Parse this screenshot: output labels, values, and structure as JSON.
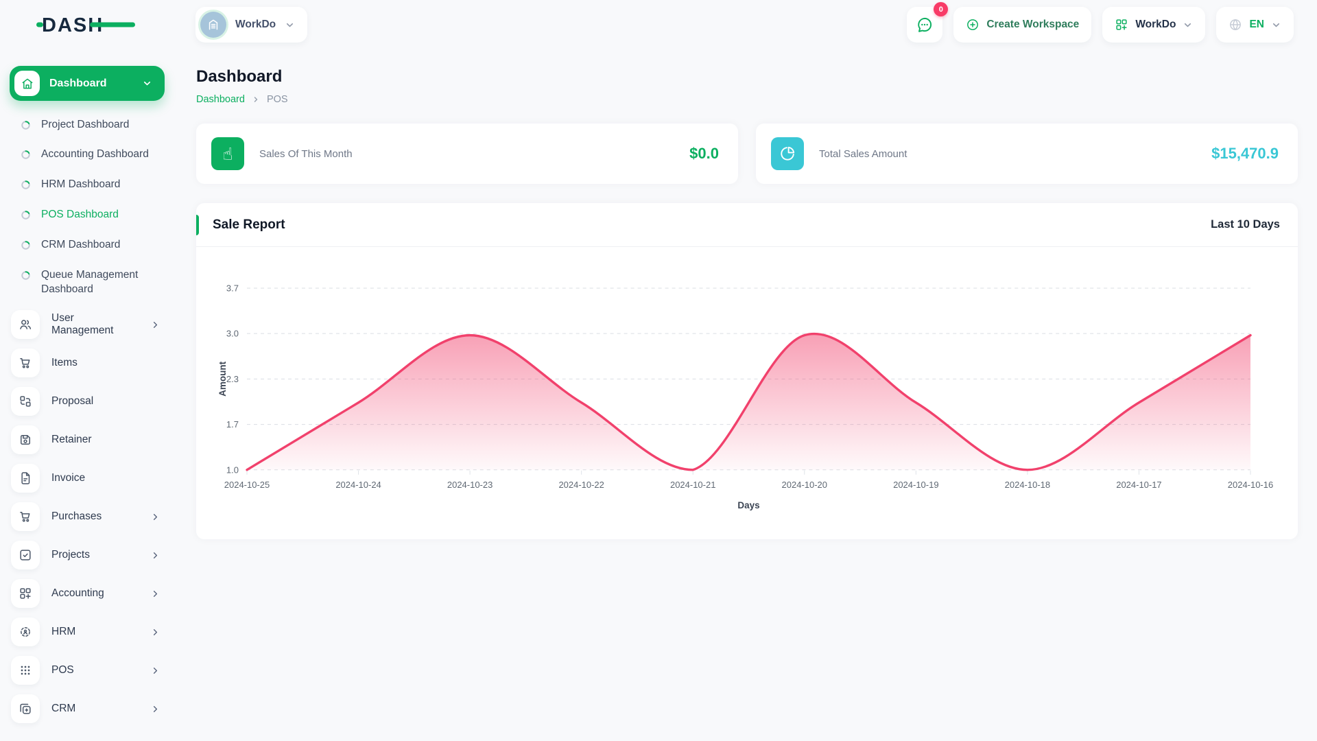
{
  "brand": {
    "logo_text": "DASH",
    "green": "#0caf60",
    "navy": "#17293e"
  },
  "header": {
    "workspace_switcher": {
      "label": "WorkDo",
      "avatar_icon": "building-icon"
    },
    "chat": {
      "icon": "chat-icon",
      "badge_count": "0"
    },
    "create_workspace_label": "Create Workspace",
    "workdo_menu_label": "WorkDo",
    "language": {
      "code": "EN",
      "icon": "globe-icon"
    }
  },
  "sidebar": {
    "active_item": {
      "label": "Dashboard",
      "icon": "home-icon"
    },
    "dashboard_children": [
      {
        "label": "Project Dashboard",
        "active": false
      },
      {
        "label": "Accounting Dashboard",
        "active": false
      },
      {
        "label": "HRM Dashboard",
        "active": false
      },
      {
        "label": "POS Dashboard",
        "active": true
      },
      {
        "label": "CRM Dashboard",
        "active": false
      },
      {
        "label": "Queue Management Dashboard",
        "active": false
      }
    ],
    "items": [
      {
        "label": "User Management",
        "icon": "users-icon",
        "has_children": true
      },
      {
        "label": "Items",
        "icon": "cart-icon",
        "has_children": false
      },
      {
        "label": "Proposal",
        "icon": "proposal-icon",
        "has_children": false
      },
      {
        "label": "Retainer",
        "icon": "retainer-icon",
        "has_children": false
      },
      {
        "label": "Invoice",
        "icon": "invoice-icon",
        "has_children": false
      },
      {
        "label": "Purchases",
        "icon": "cart-icon",
        "has_children": true
      },
      {
        "label": "Projects",
        "icon": "projects-icon",
        "has_children": true
      },
      {
        "label": "Accounting",
        "icon": "accounting-icon",
        "has_children": true
      },
      {
        "label": "HRM",
        "icon": "hrm-icon",
        "has_children": true
      },
      {
        "label": "POS",
        "icon": "pos-icon",
        "has_children": true
      },
      {
        "label": "CRM",
        "icon": "crm-icon",
        "has_children": true
      }
    ]
  },
  "page": {
    "title": "Dashboard",
    "breadcrumb": [
      {
        "label": "Dashboard",
        "link": true
      },
      {
        "label": "POS",
        "link": false
      }
    ]
  },
  "stats": [
    {
      "label": "Sales Of This Month",
      "value": "$0.0",
      "accent": "#0caf60",
      "icon": "tap-icon"
    },
    {
      "label": "Total Sales Amount",
      "value": "$15,470.9",
      "accent": "#3ac7d5",
      "icon": "pie-chart-icon"
    }
  ],
  "report": {
    "title": "Sale Report",
    "range_label": "Last 10 Days"
  },
  "chart_data": {
    "type": "area",
    "title": "Sale Report",
    "x": [
      "2024-10-25",
      "2024-10-24",
      "2024-10-23",
      "2024-10-22",
      "2024-10-21",
      "2024-10-20",
      "2024-10-19",
      "2024-10-18",
      "2024-10-17",
      "2024-10-16"
    ],
    "series": [
      {
        "name": "Amount",
        "values": [
          1,
          2,
          3,
          2,
          1,
          3,
          2,
          1,
          2,
          3
        ]
      }
    ],
    "xlabel": "Days",
    "ylabel": "Amount",
    "ylim": [
      1.0,
      3.7
    ],
    "ytick_labels": [
      "1.0",
      "1.7",
      "2.3",
      "3.0",
      "3.7"
    ],
    "grid": "dashed-horizontal",
    "legend": "none",
    "line_color": "#f1416c",
    "fill": "pink gradient fading down",
    "label_color": "#5f6873",
    "axis_title_color": "#3b4453"
  }
}
